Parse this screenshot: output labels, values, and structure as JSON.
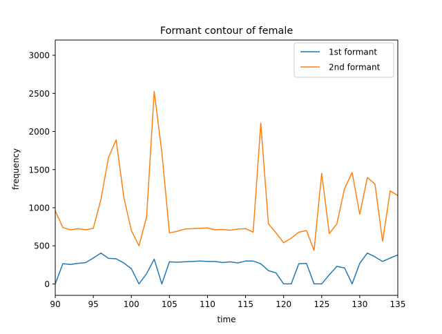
{
  "chart_data": {
    "type": "line",
    "title": "Formant contour of female",
    "xlabel": "time",
    "ylabel": "frequency",
    "xlim": [
      90,
      135
    ],
    "ylim": [
      -150,
      3200
    ],
    "xticks": [
      90,
      95,
      100,
      105,
      110,
      115,
      120,
      125,
      130,
      135
    ],
    "yticks": [
      0,
      500,
      1000,
      1500,
      2000,
      2500,
      3000
    ],
    "legend_position": "top-right",
    "grid": false,
    "x": [
      90,
      91,
      92,
      93,
      94,
      95,
      96,
      97,
      98,
      99,
      100,
      101,
      102,
      103,
      104,
      105,
      106,
      107,
      108,
      109,
      110,
      111,
      112,
      113,
      114,
      115,
      116,
      117,
      118,
      119,
      120,
      121,
      122,
      123,
      124,
      125,
      126,
      127,
      128,
      129,
      130,
      131,
      132,
      133,
      134,
      135
    ],
    "series": [
      {
        "name": "1st formant",
        "color": "#1f77b4",
        "values": [
          0,
          265,
          255,
          270,
          280,
          340,
          405,
          335,
          330,
          275,
          200,
          0,
          135,
          325,
          0,
          290,
          285,
          290,
          295,
          300,
          295,
          295,
          280,
          290,
          275,
          300,
          300,
          265,
          175,
          145,
          0,
          0,
          265,
          270,
          0,
          0,
          120,
          230,
          210,
          0,
          270,
          405,
          355,
          295,
          340,
          380
        ]
      },
      {
        "name": "2nd formant",
        "color": "#ff7f0e",
        "values": [
          960,
          740,
          710,
          725,
          710,
          730,
          1110,
          1660,
          1890,
          1140,
          700,
          500,
          880,
          2525,
          1730,
          670,
          690,
          720,
          725,
          730,
          735,
          710,
          715,
          705,
          720,
          725,
          680,
          2110,
          790,
          670,
          540,
          600,
          680,
          700,
          440,
          1450,
          660,
          790,
          1250,
          1460,
          915,
          1395,
          1310,
          560,
          1220,
          1160
        ]
      }
    ]
  }
}
